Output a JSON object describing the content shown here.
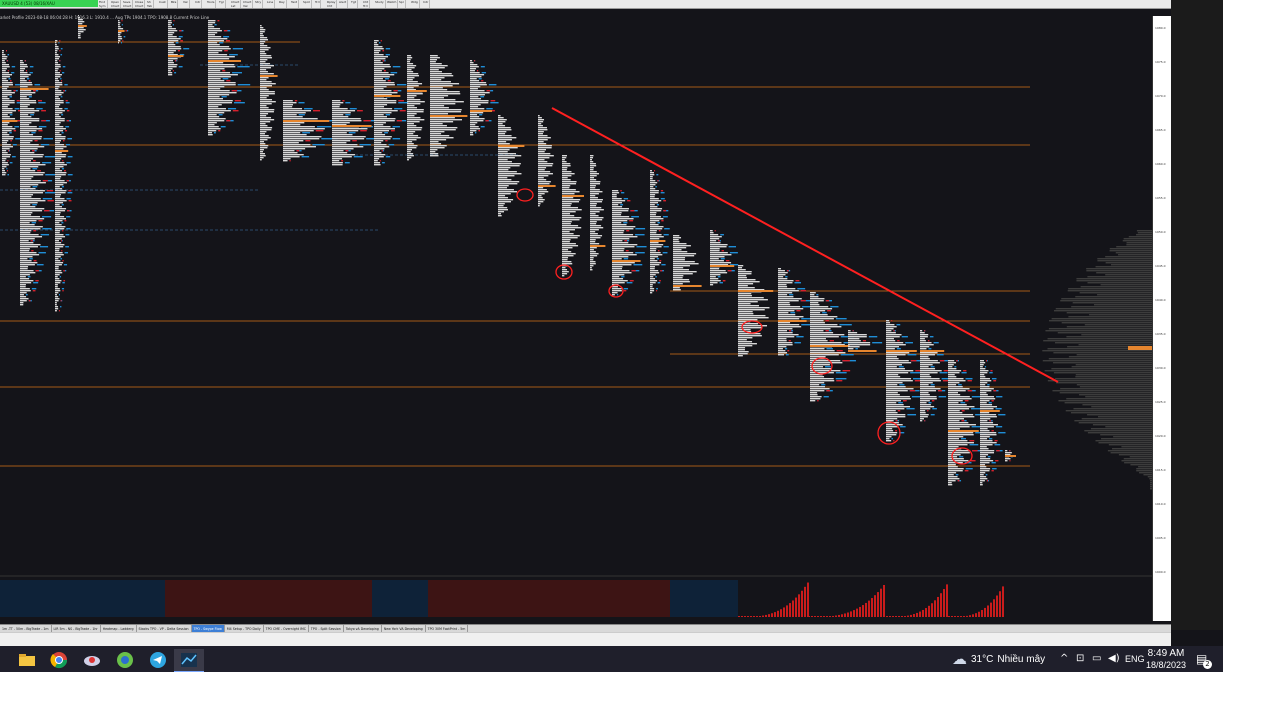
{
  "app": {
    "symbol": "XAUUSD 4 (53) 08/16/XAU",
    "chart_info": "arket Profile  2023-08-18 06:04:28 H: 1916.3 L: 1910.4 ... Aug TPs  1904.1 TPO: 1908.8 Current Price Line",
    "toolbar_buttons": [
      "Find\nSym",
      "Open\nChart",
      "Save\nChart",
      "Close\nChart",
      "Sh\nTab",
      "Cust",
      "Bks",
      "Val",
      "Intr",
      "Tools",
      "Tgl",
      "Chart\nLst",
      "Chart\nVal",
      "Stry",
      "Line",
      "Ray",
      "Text",
      "Spot",
      "Trd",
      "Rplay\nCht",
      "Alert",
      "Tgt",
      "Cht\nTrd",
      "Study",
      "Watch",
      "Spr",
      "Wdg",
      "Intr"
    ]
  },
  "price_axis": {
    "ticks": [
      "1980.0",
      "1975.0",
      "1970.0",
      "1965.0",
      "1960.0",
      "1955.0",
      "1950.0",
      "1945.0",
      "1940.0",
      "1935.0",
      "1930.0",
      "1925.0",
      "1920.0",
      "1915.0",
      "1910.0",
      "1905.0",
      "1900.0"
    ]
  },
  "session_tabs": [
    "1m -TT - 50m - BigTrade - 1m",
    "LIR 5m - NS - BigTrade - 1hr",
    "Heatmap - Ladderg",
    "Stacks TPO - VP - Delta Session",
    "TPO - Swype Flow",
    "M4 Setup - TPO Daily",
    "TPO CME - Overnight IMC",
    "TPO - Split Session",
    "Tokyo vA Developing",
    "New York VA Developing",
    "TPO 30M FootPrint - 5m"
  ],
  "active_session_tab": "TPO - Swype Flow",
  "taskbar": {
    "apps": [
      "file-explorer",
      "chrome",
      "app-3",
      "app-4",
      "telegram",
      "trading-app"
    ],
    "weather_temp": "31°C",
    "weather_desc": "Nhiều mây",
    "language": "ENG",
    "time": "8:49 AM",
    "date": "18/8/2023",
    "notification_count": "2"
  },
  "colors": {
    "background": "#141419",
    "tpo_white": "#d8d8d8",
    "volume_blue": "#1f8dd6",
    "volume_red": "#d6202c",
    "poc_orange": "#e6862f",
    "trendline": "#ff2020",
    "level_line": "#a55a18"
  }
}
